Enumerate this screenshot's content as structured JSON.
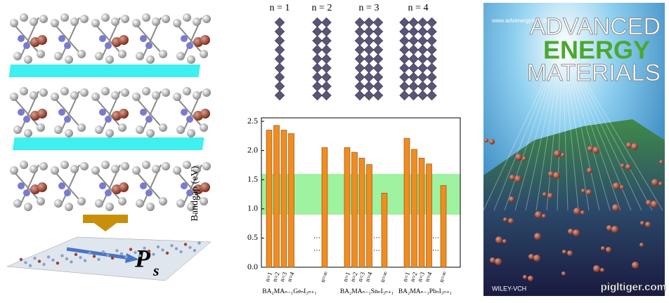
{
  "chart_data": {
    "type": "bar",
    "ylabel": "Bandgap (eV)",
    "categories": [
      "n=1",
      "n=2",
      "n=3",
      "n=4",
      "n=∞",
      "n=1",
      "n=2",
      "n=3",
      "n=4",
      "n=∞",
      "n=1",
      "n=2",
      "n=3",
      "n=4",
      "n=∞"
    ],
    "groups": [
      "BA₂MAₙ₋₁GeₙI₃ₙ₊₁",
      "BA₂MAₙ₋₁SnₙI₃ₙ₊₁",
      "BA₂MAₙ₋₁PbₙI₃ₙ₊₁"
    ],
    "values": [
      2.35,
      2.43,
      2.35,
      2.29,
      2.05,
      2.05,
      1.97,
      1.87,
      1.76,
      1.27,
      2.21,
      2.02,
      1.87,
      1.77,
      1.4
    ],
    "color": "#f28c1e",
    "ylim": [
      0,
      2.5
    ],
    "yticks": [
      {
        "value": 0,
        "label": "0.0"
      },
      0.5,
      {
        "value": 1,
        "label": "1.0"
      },
      1.5,
      {
        "value": 2,
        "label": "2.0"
      },
      2.5
    ],
    "highlight_band": [
      0.9,
      1.6
    ],
    "highlight_color": "#8ef08e"
  },
  "structures": {
    "labels": [
      "n = 1",
      "n = 2",
      "n = 3",
      "n = 4"
    ]
  },
  "polarization": {
    "symbol": "P",
    "subscript": "s"
  },
  "cover": {
    "url": "www.advenergymat.de",
    "title_lines": [
      "ADVANCED",
      "ENERGY",
      "MATERIALS"
    ],
    "publisher": "WILEY-VCH"
  },
  "watermark": "pigltiger.com"
}
